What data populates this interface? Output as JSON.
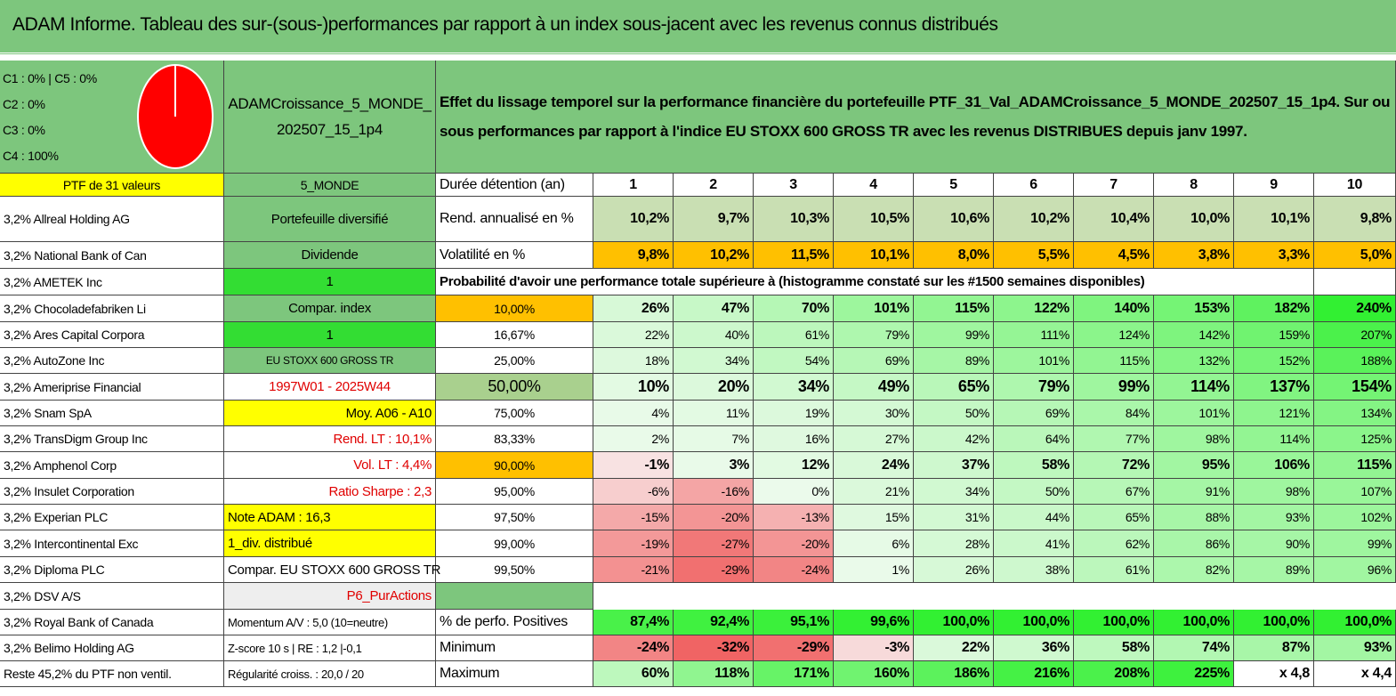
{
  "title": "ADAM Informe. Tableau des sur-(sous-)performances par rapport à un index sous-jacent avec les revenus connus distribués",
  "summary": [
    "C1 : 0% | C5 : 0%",
    "C2 : 0%",
    "C3 : 0%",
    "C4 : 100%"
  ],
  "portfolio": "ADAMCroissance_5_MONDE_202507_15_1p4",
  "description": "Effet du lissage temporel sur la performance financière du portefeuille PTF_31_Val_ADAMCroissance_5_MONDE_202507_15_1p4. Sur ou sous performances par rapport à l'indice EU STOXX 600 GROSS TR avec les revenus DISTRIBUES depuis janv 1997.",
  "holdings": [
    "PTF de 31 valeurs",
    "3,2% Allreal Holding AG",
    "3,2% National Bank of Can",
    "3,2% AMETEK Inc",
    "3,2% Chocoladefabriken Li",
    "3,2% Ares Capital Corpora",
    "3,2% AutoZone Inc",
    "3,2% Ameriprise Financial",
    "3,2% Snam SpA",
    "3,2% TransDigm Group Inc",
    "3,2% Amphenol Corp",
    "3,2% Insulet Corporation",
    "3,2% Experian PLC",
    "3,2% Intercontinental Exc",
    "3,2% Diploma PLC",
    "3,2% DSV A/S",
    "3,2% Royal Bank of Canada",
    "3,2% Belimo Holding AG",
    "Reste 45,2% du PTF non ventil."
  ],
  "side": [
    "5_MONDE",
    "Portefeuille diversifié",
    "Dividende",
    "1",
    "Compar. index",
    "1",
    "EU STOXX 600 GROSS TR",
    "1997W01 - 2025W44",
    "Moy. A06 - A10",
    "Rend. LT : 10,1%",
    "Vol. LT : 4,4%",
    "Ratio Sharpe : 2,3",
    "Note ADAM : 16,3",
    "1_div. distribué",
    "Compar. EU STOXX 600 GROSS TR",
    "P6_PurActions",
    "Momentum A/V : 5,0 (10=neutre)",
    "Z-score 10 s | RE : 1,2 |-0,1",
    "Régularité croiss. : 20,0 / 20"
  ],
  "table": {
    "rows": [
      {
        "label": "Durée détention (an)",
        "cells": [
          "1",
          "2",
          "3",
          "4",
          "5",
          "6",
          "7",
          "8",
          "9",
          "10"
        ]
      },
      {
        "label": "Rend. annualisé en %",
        "cells": [
          "10,2%",
          "9,7%",
          "10,3%",
          "10,5%",
          "10,6%",
          "10,2%",
          "10,4%",
          "10,0%",
          "10,1%",
          "9,8%"
        ]
      },
      {
        "label": "Volatilité en %",
        "cells": [
          "9,8%",
          "10,2%",
          "11,5%",
          "10,1%",
          "8,0%",
          "5,5%",
          "4,5%",
          "3,8%",
          "3,3%",
          "5,0%"
        ]
      },
      {
        "label": "Probabilité d'avoir une performance totale supérieure à (histogramme constaté sur les #1500 semaines disponibles)",
        "cells": []
      },
      {
        "label": "10,00%",
        "cells": [
          "26%",
          "47%",
          "70%",
          "101%",
          "115%",
          "122%",
          "140%",
          "153%",
          "182%",
          "240%"
        ]
      },
      {
        "label": "16,67%",
        "cells": [
          "22%",
          "40%",
          "61%",
          "79%",
          "99%",
          "111%",
          "124%",
          "142%",
          "159%",
          "207%"
        ]
      },
      {
        "label": "25,00%",
        "cells": [
          "18%",
          "34%",
          "54%",
          "69%",
          "89%",
          "101%",
          "115%",
          "132%",
          "152%",
          "188%"
        ]
      },
      {
        "label": "50,00%",
        "cells": [
          "10%",
          "20%",
          "34%",
          "49%",
          "65%",
          "79%",
          "99%",
          "114%",
          "137%",
          "154%"
        ]
      },
      {
        "label": "75,00%",
        "cells": [
          "4%",
          "11%",
          "19%",
          "30%",
          "50%",
          "69%",
          "84%",
          "101%",
          "121%",
          "134%"
        ]
      },
      {
        "label": "83,33%",
        "cells": [
          "2%",
          "7%",
          "16%",
          "27%",
          "42%",
          "64%",
          "77%",
          "98%",
          "114%",
          "125%"
        ]
      },
      {
        "label": "90,00%",
        "cells": [
          "-1%",
          "3%",
          "12%",
          "24%",
          "37%",
          "58%",
          "72%",
          "95%",
          "106%",
          "115%"
        ]
      },
      {
        "label": "95,00%",
        "cells": [
          "-6%",
          "-16%",
          "0%",
          "21%",
          "34%",
          "50%",
          "67%",
          "91%",
          "98%",
          "107%"
        ]
      },
      {
        "label": "97,50%",
        "cells": [
          "-15%",
          "-20%",
          "-13%",
          "15%",
          "31%",
          "44%",
          "65%",
          "88%",
          "93%",
          "102%"
        ]
      },
      {
        "label": "99,00%",
        "cells": [
          "-19%",
          "-27%",
          "-20%",
          "6%",
          "28%",
          "41%",
          "62%",
          "86%",
          "90%",
          "99%"
        ]
      },
      {
        "label": "99,50%",
        "cells": [
          "-21%",
          "-29%",
          "-24%",
          "1%",
          "26%",
          "38%",
          "61%",
          "82%",
          "89%",
          "96%"
        ]
      },
      {
        "label": null,
        "cells": []
      },
      {
        "label": "% de perfo. Positives",
        "cells": [
          "87,4%",
          "92,4%",
          "95,1%",
          "99,6%",
          "100,0%",
          "100,0%",
          "100,0%",
          "100,0%",
          "100,0%",
          "100,0%"
        ]
      },
      {
        "label": "Minimum",
        "cells": [
          "-24%",
          "-32%",
          "-29%",
          "-3%",
          "22%",
          "36%",
          "58%",
          "74%",
          "87%",
          "93%"
        ]
      },
      {
        "label": "Maximum",
        "cells": [
          "60%",
          "118%",
          "171%",
          "160%",
          "186%",
          "216%",
          "208%",
          "225%",
          "x 4,8",
          "x 4,4"
        ]
      }
    ]
  }
}
